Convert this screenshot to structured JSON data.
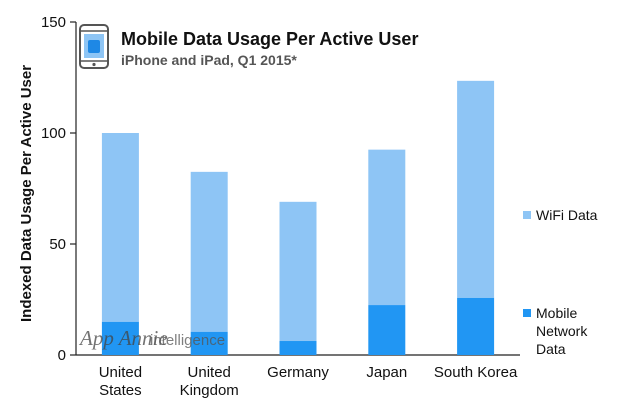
{
  "chart_data": {
    "type": "bar",
    "stacked": true,
    "title": "Mobile Data Usage Per Active User",
    "subtitle": "iPhone and iPad, Q1 2015*",
    "xlabel": "",
    "ylabel": "Indexed Data Usage Per Active User",
    "ylim": [
      0,
      150
    ],
    "yticks": [
      0,
      50,
      100,
      150
    ],
    "categories": [
      [
        "United",
        "States"
      ],
      [
        "United",
        "Kingdom"
      ],
      [
        "Germany"
      ],
      [
        "Japan"
      ],
      [
        "South Korea"
      ]
    ],
    "series": [
      {
        "name": [
          "Mobile",
          "Network",
          "Data"
        ],
        "color": "#2196f3",
        "values": [
          15,
          10.5,
          6.3,
          22.5,
          25.8
        ]
      },
      {
        "name": [
          "WiFi Data"
        ],
        "color": "#8ec5f5",
        "values": [
          85,
          72,
          62.7,
          70,
          97.7
        ]
      }
    ],
    "totals": [
      100,
      82.5,
      69,
      92.5,
      123.5
    ]
  },
  "watermark": {
    "brand": "App Annie",
    "product": "intelligence"
  },
  "icon": "tablet-icon"
}
